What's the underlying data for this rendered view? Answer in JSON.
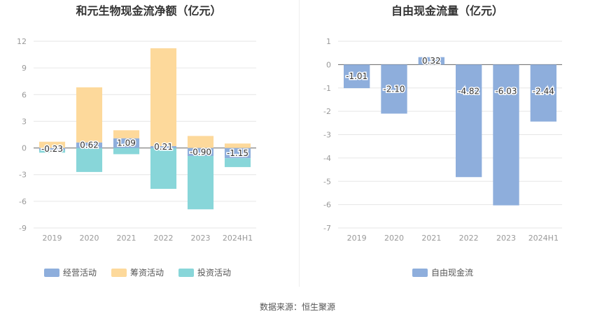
{
  "source": "数据来源：恒生聚源",
  "chart_data": [
    {
      "type": "bar",
      "stacked": true,
      "title": "和元生物现金流净额（亿元）",
      "categories": [
        "2019",
        "2020",
        "2021",
        "2022",
        "2023",
        "2024H1"
      ],
      "ylim": [
        -9,
        12
      ],
      "yticks": [
        -9,
        -6,
        -3,
        0,
        3,
        6,
        9,
        12
      ],
      "grid": true,
      "legend_position": "bottom",
      "labeled_series": "经营活动",
      "series": [
        {
          "name": "经营活动",
          "color": "#8eaedc",
          "values": [
            -0.23,
            0.62,
            1.09,
            0.21,
            -0.9,
            -1.15
          ]
        },
        {
          "name": "筹资活动",
          "color": "#fdd99b",
          "values": [
            0.7,
            6.2,
            0.9,
            11.0,
            1.35,
            0.5
          ]
        },
        {
          "name": "投资活动",
          "color": "#88d6d9",
          "values": [
            -0.3,
            -2.7,
            -0.7,
            -4.6,
            -6.0,
            -1.0
          ]
        }
      ]
    },
    {
      "type": "bar",
      "title": "自由现金流量（亿元）",
      "categories": [
        "2019",
        "2020",
        "2021",
        "2022",
        "2023",
        "2024H1"
      ],
      "ylim": [
        -7,
        1
      ],
      "yticks": [
        -7,
        -6,
        -5,
        -4,
        -3,
        -2,
        -1,
        0,
        1
      ],
      "grid": true,
      "legend_position": "bottom",
      "series": [
        {
          "name": "自由现金流",
          "color": "#8eaedc",
          "values": [
            -1.01,
            -2.1,
            0.32,
            -4.82,
            -6.03,
            -2.44
          ]
        }
      ]
    }
  ]
}
